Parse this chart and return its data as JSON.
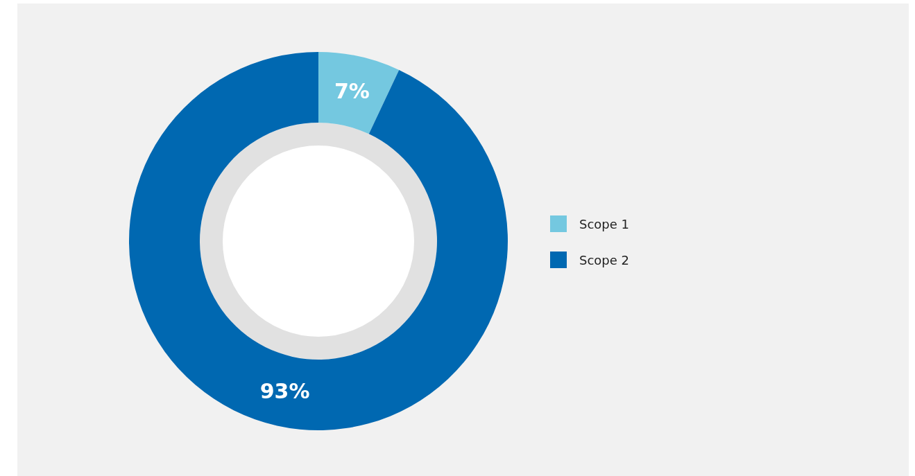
{
  "chart_data": {
    "type": "donut",
    "categories": [
      "Scope 1",
      "Scope 2"
    ],
    "values": [
      7,
      93
    ],
    "colors": [
      "#74c8e0",
      "#0068b1"
    ],
    "value_labels": [
      "7%",
      "93%"
    ],
    "legend": "right"
  }
}
